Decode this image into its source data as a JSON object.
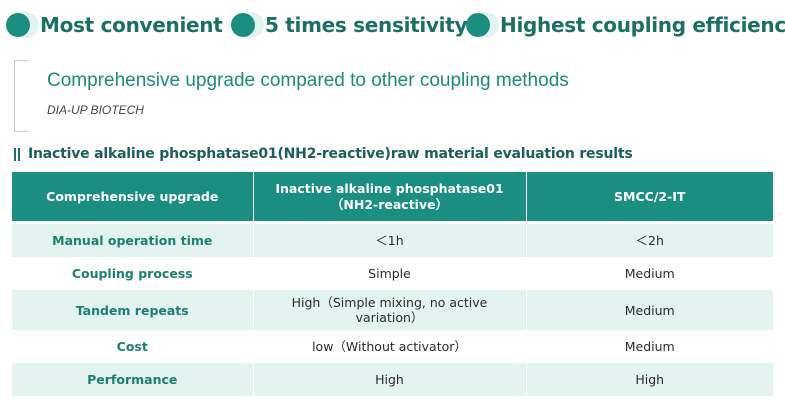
{
  "features": [
    {
      "label": "Most convenient"
    },
    {
      "label": "5 times sensitivity"
    },
    {
      "label": "Highest coupling efficiency"
    }
  ],
  "subheading": {
    "title": "Comprehensive upgrade compared to other coupling methods",
    "brand": "DIA-UP BIOTECH"
  },
  "section": {
    "title": "Inactive alkaline phosphatase01(NH2-reactive)raw material evaluation results"
  },
  "table": {
    "headers": {
      "col1": "Comprehensive upgrade",
      "col2_line1": "Inactive alkaline phosphatase01",
      "col2_line2": "（NH2-reactive）",
      "col3": "SMCC/2-IT"
    },
    "rows": [
      {
        "label": "Manual operation time",
        "a": "＜1h",
        "b": "＜2h"
      },
      {
        "label": "Coupling process",
        "a": "Simple",
        "b": "Medium"
      },
      {
        "label": "Tandem repeats",
        "a_line1": "High（Simple mixing, no active",
        "a_line2": "variation）",
        "b": "Medium"
      },
      {
        "label": "Cost",
        "a": "low（Without activator）",
        "b": "Medium"
      },
      {
        "label": "Performance",
        "a": "High",
        "b": "High"
      }
    ]
  },
  "colors": {
    "accent": "#1a8e80",
    "accent_dark": "#1c6f66",
    "row_tint": "#e3f3f0"
  }
}
